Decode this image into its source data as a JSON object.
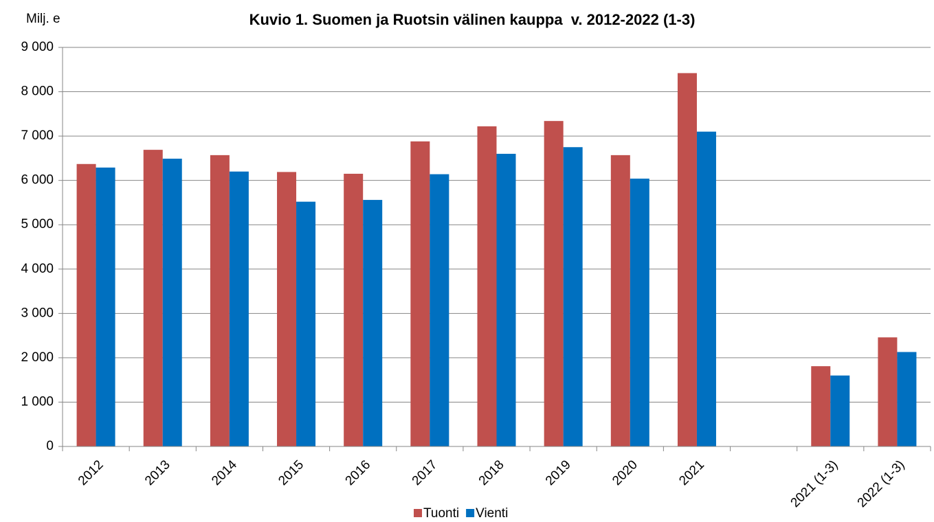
{
  "chart_data": {
    "type": "bar",
    "title": "Kuvio 1. Suomen ja Ruotsin välinen kauppa  v. 2012-2022 (1-3)",
    "ylabel": "Milj. e",
    "categories": [
      "2012",
      "2013",
      "2014",
      "2015",
      "2016",
      "2017",
      "2018",
      "2019",
      "2020",
      "2021",
      null,
      "2021 (1-3)",
      "2022 (1-3)"
    ],
    "series": [
      {
        "name": "Tuonti",
        "color": "#c0504d",
        "values": [
          6370,
          6690,
          6570,
          6190,
          6150,
          6880,
          7220,
          7340,
          6570,
          8420,
          null,
          1810,
          2460
        ]
      },
      {
        "name": "Vienti",
        "color": "#0070c0",
        "values": [
          6290,
          6490,
          6200,
          5520,
          5560,
          6140,
          6600,
          6750,
          6040,
          7100,
          null,
          1600,
          2130
        ]
      }
    ],
    "ylim": [
      0,
      9000
    ],
    "yticks": [
      0,
      {
        "value": 1000,
        "label": "1 000"
      },
      {
        "value": 2000,
        "label": "2 000"
      },
      {
        "value": 3000,
        "label": "3 000"
      },
      {
        "value": 4000,
        "label": "4 000"
      },
      {
        "value": 5000,
        "label": "5 000"
      },
      {
        "value": 6000,
        "label": "6 000"
      },
      {
        "value": 7000,
        "label": "7 000"
      },
      {
        "value": 8000,
        "label": "8 000"
      },
      {
        "value": 9000,
        "label": "9 000"
      }
    ],
    "grid": true,
    "legend": "bottom"
  }
}
